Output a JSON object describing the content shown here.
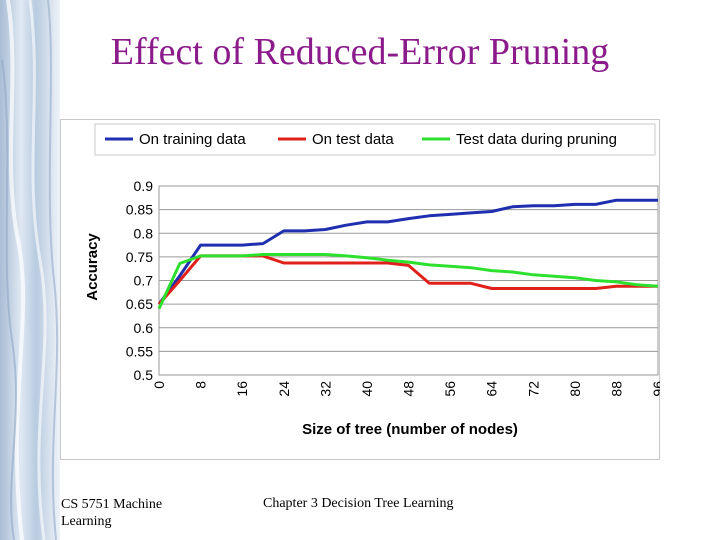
{
  "slide": {
    "title": "Effect of Reduced-Error Pruning",
    "footer_left": "CS 5751 Machine Learning",
    "footer_center": "Chapter 3 Decision Tree Learning"
  },
  "colors": {
    "title": "#8B1A8B",
    "training": "#1f2fb0",
    "test": "#e0201a",
    "pruning": "#2ee02e"
  },
  "chart_data": {
    "type": "line",
    "title": "",
    "xlabel": "Size of tree (number of nodes)",
    "ylabel": "Accuracy",
    "xlim": [
      0,
      96
    ],
    "ylim": [
      0.5,
      0.9
    ],
    "x_ticks": [
      "0",
      "8",
      "16",
      "24",
      "32",
      "40",
      "48",
      "56",
      "64",
      "72",
      "80",
      "88",
      "96"
    ],
    "y_ticks": [
      "0.9",
      "0.85",
      "0.8",
      "0.75",
      "0.7",
      "0.65",
      "0.6",
      "0.55",
      "0.5"
    ],
    "grid": true,
    "legend": "top",
    "series": [
      {
        "name": "On training data",
        "color": "#1f2fb0",
        "x": [
          0,
          4,
          8,
          12,
          16,
          20,
          24,
          28,
          32,
          36,
          40,
          44,
          48,
          52,
          56,
          60,
          64,
          68,
          72,
          76,
          80,
          84,
          88,
          92,
          96
        ],
        "y": [
          0.65,
          0.71,
          0.775,
          0.775,
          0.775,
          0.778,
          0.805,
          0.805,
          0.808,
          0.817,
          0.824,
          0.824,
          0.831,
          0.837,
          0.84,
          0.843,
          0.846,
          0.856,
          0.858,
          0.858,
          0.861,
          0.861,
          0.87,
          0.87,
          0.87
        ]
      },
      {
        "name": "On test data",
        "color": "#e0201a",
        "x": [
          0,
          4,
          8,
          12,
          16,
          20,
          24,
          28,
          32,
          36,
          40,
          44,
          48,
          52,
          56,
          60,
          64,
          68,
          72,
          76,
          80,
          84,
          88,
          92,
          96
        ],
        "y": [
          0.65,
          0.7,
          0.752,
          0.752,
          0.752,
          0.752,
          0.737,
          0.737,
          0.737,
          0.737,
          0.737,
          0.737,
          0.732,
          0.694,
          0.694,
          0.694,
          0.683,
          0.683,
          0.683,
          0.683,
          0.683,
          0.683,
          0.688,
          0.688,
          0.688
        ]
      },
      {
        "name": "Test data during pruning",
        "color": "#2ee02e",
        "x": [
          0,
          4,
          8,
          12,
          16,
          20,
          24,
          28,
          32,
          36,
          40,
          44,
          48,
          52,
          56,
          60,
          64,
          68,
          72,
          76,
          80,
          84,
          88,
          92,
          96
        ],
        "y": [
          0.64,
          0.736,
          0.752,
          0.752,
          0.752,
          0.755,
          0.755,
          0.755,
          0.755,
          0.752,
          0.748,
          0.743,
          0.739,
          0.733,
          0.73,
          0.727,
          0.721,
          0.718,
          0.712,
          0.709,
          0.706,
          0.7,
          0.697,
          0.691,
          0.688
        ]
      }
    ]
  }
}
